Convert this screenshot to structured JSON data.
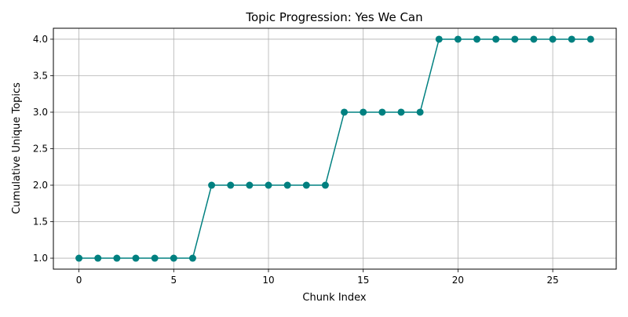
{
  "chart_data": {
    "type": "line",
    "title": "Topic Progression: Yes We Can",
    "xlabel": "Chunk Index",
    "ylabel": "Cumulative Unique Topics",
    "x": [
      0,
      1,
      2,
      3,
      4,
      5,
      6,
      7,
      8,
      9,
      10,
      11,
      12,
      13,
      14,
      15,
      16,
      17,
      18,
      19,
      20,
      21,
      22,
      23,
      24,
      25,
      26,
      27
    ],
    "series": [
      {
        "values": [
          1,
          1,
          1,
          1,
          1,
          1,
          1,
          2,
          2,
          2,
          2,
          2,
          2,
          2,
          3,
          3,
          3,
          3,
          3,
          4,
          4,
          4,
          4,
          4,
          4,
          4,
          4,
          4
        ],
        "color": "#008080",
        "marker": "circle"
      }
    ],
    "xlim": [
      -1.35,
      28.35
    ],
    "ylim": [
      0.85,
      4.15
    ],
    "xticks": [
      0,
      5,
      10,
      15,
      20,
      25
    ],
    "xtick_labels": [
      "0",
      "5",
      "10",
      "15",
      "20",
      "25"
    ],
    "yticks": [
      1.0,
      1.5,
      2.0,
      2.5,
      3.0,
      3.5,
      4.0
    ],
    "ytick_labels": [
      "1.0",
      "1.5",
      "2.0",
      "2.5",
      "3.0",
      "3.5",
      "4.0"
    ],
    "grid": true,
    "legend": "none"
  }
}
